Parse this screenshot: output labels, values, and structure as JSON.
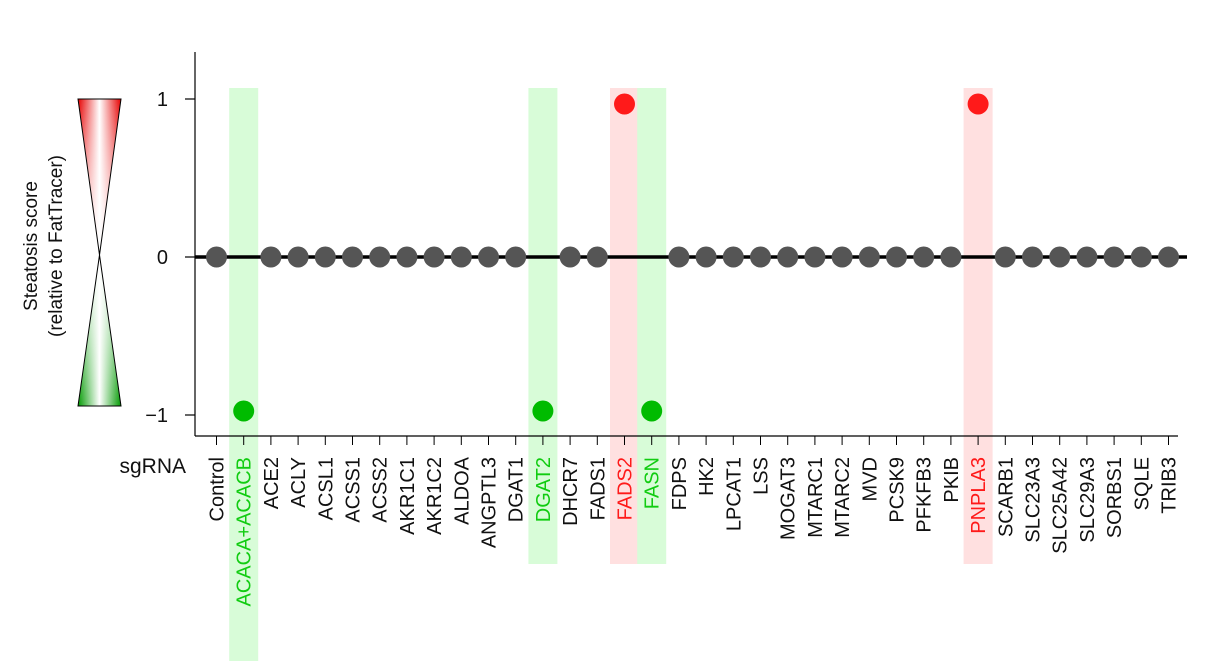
{
  "chart_data": {
    "type": "scatter",
    "ylabel_line1": "Steatosis score",
    "ylabel_line2": "(relative to FatTracer)",
    "x_axis_prefix": "sgRNA",
    "yticks": [
      1,
      0,
      -1
    ],
    "ytick_labels": [
      "1",
      "0",
      "−1"
    ],
    "ylim": [
      -1.22,
      1.3
    ],
    "categories": [
      "Control",
      "ACACA+ACACB",
      "ACE2",
      "ACLY",
      "ACSL1",
      "ACSS1",
      "ACSS2",
      "AKR1C1",
      "AKR1C2",
      "ALDOA",
      "ANGPTL3",
      "DGAT1",
      "DGAT2",
      "DHCR7",
      "FADS1",
      "FADS2",
      "FASN",
      "FDPS",
      "HK2",
      "LPCAT1",
      "LSS",
      "MOGAT3",
      "MTARC1",
      "MTARC2",
      "MVD",
      "PCSK9",
      "PFKFB3",
      "PKIB",
      "PNPLA3",
      "SCARB1",
      "SLC23A3",
      "SLC25A42",
      "SLC29A3",
      "SORBS1",
      "SQLE",
      "TRIB3"
    ],
    "values": [
      0,
      -1,
      0,
      0,
      0,
      0,
      0,
      0,
      0,
      0,
      0,
      0,
      -1,
      0,
      0,
      1,
      -1,
      0,
      0,
      0,
      0,
      0,
      0,
      0,
      0,
      0,
      0,
      0,
      1,
      0,
      0,
      0,
      0,
      0,
      0,
      0
    ],
    "highlight_colors": {
      "increase": "#ff1a1a",
      "decrease": "#00bb00",
      "neutral": "#555555"
    },
    "band_colors": {
      "increase": "#ffe0e0",
      "decrease": "#d8fcd8"
    }
  }
}
